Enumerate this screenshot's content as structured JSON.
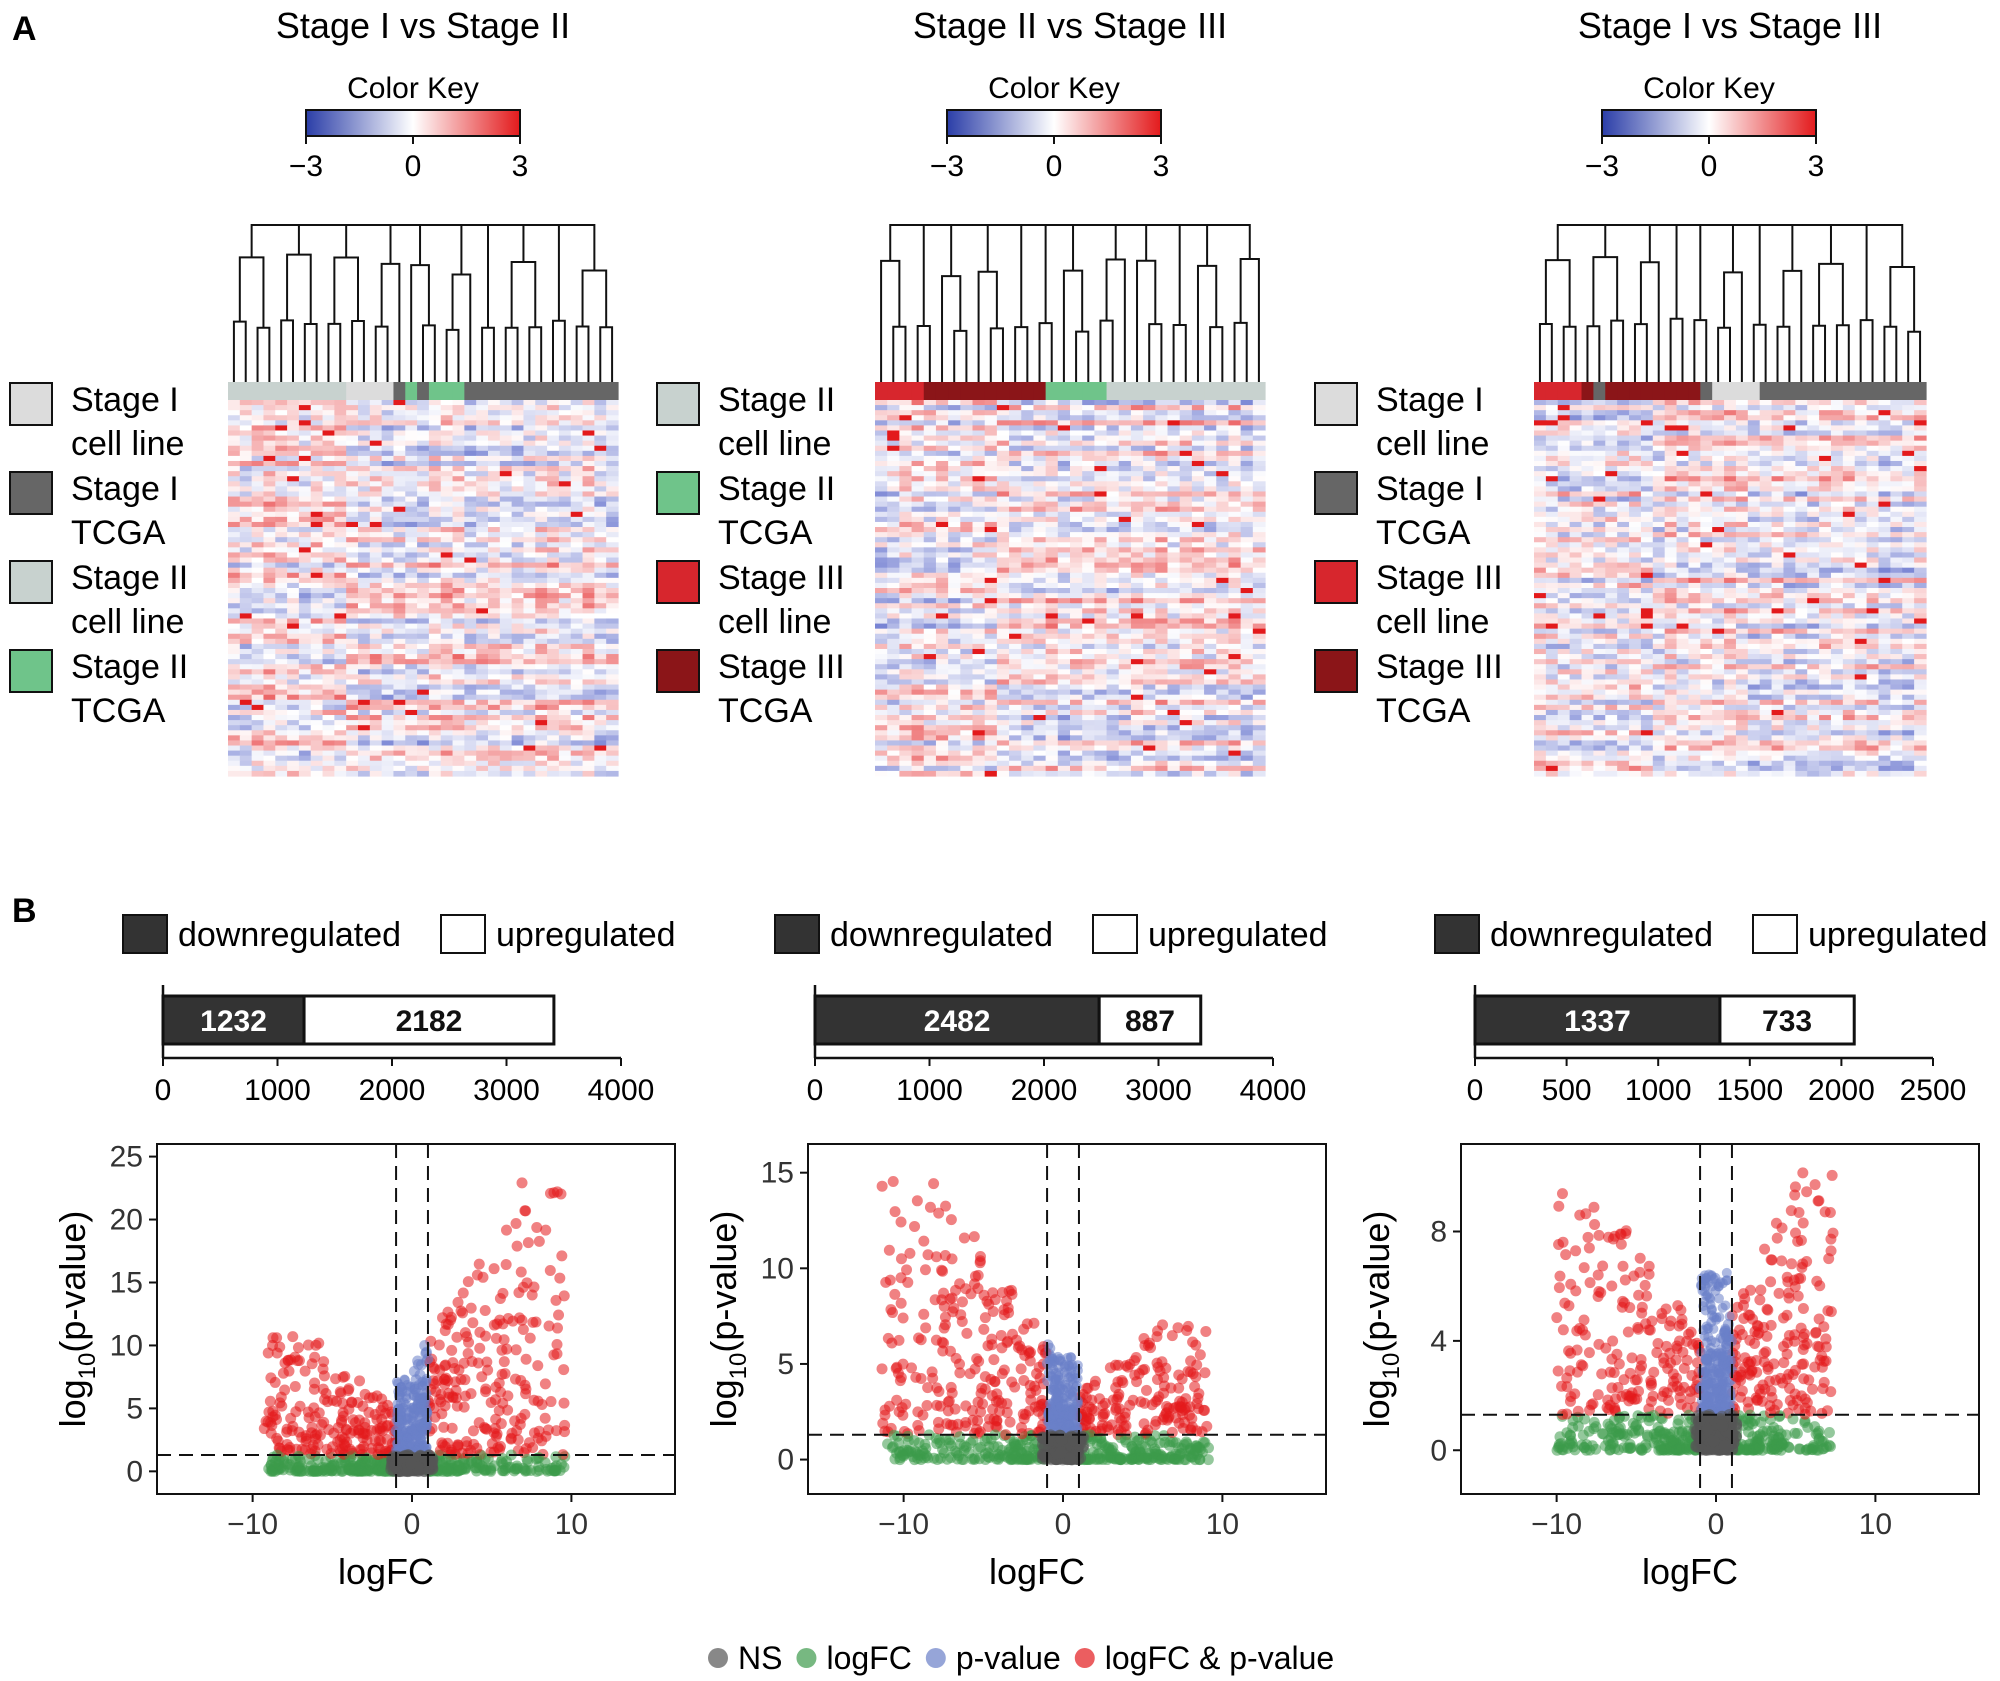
{
  "panel_letters": {
    "a": "A",
    "b": "B"
  },
  "colors": {
    "heat_low": "#3b4cc0",
    "heat_mid": "#ffffff",
    "heat_high": "#e31a1c",
    "stage1_cell": "#dcdcdc",
    "stage1_tcga": "#666666",
    "stage2_cell": "#c8d2cf",
    "stage2_tcga": "#6fc48a",
    "stage3_cell": "#d7262d",
    "stage3_tcga": "#8b1518",
    "ns": "#555555",
    "logfc": "#3d9a4b",
    "pvalue": "#6a7fc8",
    "both": "#e31a1c",
    "bar_down": "#333333",
    "bar_up": "#ffffff"
  },
  "heatmaps": [
    {
      "title": "Stage I vs Stage II",
      "color_key": {
        "label": "Color Key",
        "ticks": [
          "−3",
          "0",
          "3"
        ]
      },
      "legend": [
        {
          "line1": "Stage I",
          "line2": "cell line",
          "color": "#dcdcdc"
        },
        {
          "line1": "Stage I",
          "line2": "TCGA",
          "color": "#666666"
        },
        {
          "line1": "Stage II",
          "line2": "cell line",
          "color": "#c8d2cf"
        },
        {
          "line1": "Stage II",
          "line2": "TCGA",
          "color": "#6fc48a"
        }
      ],
      "col_groups": [
        "#c8d2cf",
        "#c8d2cf",
        "#c8d2cf",
        "#c8d2cf",
        "#c8d2cf",
        "#c8d2cf",
        "#c8d2cf",
        "#c8d2cf",
        "#c8d2cf",
        "#c8d2cf",
        "#dcdcdc",
        "#dcdcdc",
        "#dcdcdc",
        "#dcdcdc",
        "#666666",
        "#6fc48a",
        "#666666",
        "#6fc48a",
        "#6fc48a",
        "#6fc48a",
        "#666666",
        "#666666",
        "#666666",
        "#666666",
        "#666666",
        "#666666",
        "#666666",
        "#666666",
        "#666666",
        "#666666",
        "#666666",
        "#666666",
        "#666666"
      ]
    },
    {
      "title": "Stage II vs Stage III",
      "color_key": {
        "label": "Color Key",
        "ticks": [
          "−3",
          "0",
          "3"
        ]
      },
      "legend": [
        {
          "line1": "Stage II",
          "line2": "cell line",
          "color": "#c8d2cf"
        },
        {
          "line1": "Stage II",
          "line2": "TCGA",
          "color": "#6fc48a"
        },
        {
          "line1": "Stage III",
          "line2": "cell line",
          "color": "#d7262d"
        },
        {
          "line1": "Stage III",
          "line2": "TCGA",
          "color": "#8b1518"
        }
      ],
      "col_groups": [
        "#d7262d",
        "#d7262d",
        "#d7262d",
        "#d7262d",
        "#8b1518",
        "#8b1518",
        "#8b1518",
        "#8b1518",
        "#8b1518",
        "#8b1518",
        "#8b1518",
        "#8b1518",
        "#8b1518",
        "#8b1518",
        "#6fc48a",
        "#6fc48a",
        "#6fc48a",
        "#6fc48a",
        "#6fc48a",
        "#c8d2cf",
        "#c8d2cf",
        "#c8d2cf",
        "#c8d2cf",
        "#c8d2cf",
        "#c8d2cf",
        "#c8d2cf",
        "#c8d2cf",
        "#c8d2cf",
        "#c8d2cf",
        "#c8d2cf",
        "#c8d2cf",
        "#c8d2cf"
      ]
    },
    {
      "title": "Stage I vs Stage III",
      "color_key": {
        "label": "Color Key",
        "ticks": [
          "−3",
          "0",
          "3"
        ]
      },
      "legend": [
        {
          "line1": "Stage I",
          "line2": "cell line",
          "color": "#dcdcdc"
        },
        {
          "line1": "Stage I",
          "line2": "TCGA",
          "color": "#666666"
        },
        {
          "line1": "Stage III",
          "line2": "cell line",
          "color": "#d7262d"
        },
        {
          "line1": "Stage III",
          "line2": "TCGA",
          "color": "#8b1518"
        }
      ],
      "col_groups": [
        "#d7262d",
        "#d7262d",
        "#d7262d",
        "#d7262d",
        "#8b1518",
        "#666666",
        "#8b1518",
        "#8b1518",
        "#8b1518",
        "#8b1518",
        "#8b1518",
        "#8b1518",
        "#8b1518",
        "#8b1518",
        "#666666",
        "#dcdcdc",
        "#dcdcdc",
        "#dcdcdc",
        "#dcdcdc",
        "#666666",
        "#666666",
        "#666666",
        "#666666",
        "#666666",
        "#666666",
        "#666666",
        "#666666",
        "#666666",
        "#666666",
        "#666666",
        "#666666",
        "#666666",
        "#666666"
      ]
    }
  ],
  "bar_legend": {
    "down": "downregulated",
    "up": "upregulated"
  },
  "chart_data": [
    {
      "type": "bar",
      "orientation": "horizontal",
      "stacked": true,
      "series": [
        {
          "name": "downregulated",
          "values": [
            1232
          ]
        },
        {
          "name": "upregulated",
          "values": [
            2182
          ]
        }
      ],
      "xlim": [
        0,
        4000
      ],
      "xticks": [
        "0",
        "1000",
        "2000",
        "3000",
        "4000"
      ]
    },
    {
      "type": "bar",
      "orientation": "horizontal",
      "stacked": true,
      "series": [
        {
          "name": "downregulated",
          "values": [
            2482
          ]
        },
        {
          "name": "upregulated",
          "values": [
            887
          ]
        }
      ],
      "xlim": [
        0,
        4000
      ],
      "xticks": [
        "0",
        "1000",
        "2000",
        "3000",
        "4000"
      ]
    },
    {
      "type": "bar",
      "orientation": "horizontal",
      "stacked": true,
      "series": [
        {
          "name": "downregulated",
          "values": [
            1337
          ]
        },
        {
          "name": "upregulated",
          "values": [
            733
          ]
        }
      ],
      "xlim": [
        0,
        2500
      ],
      "xticks": [
        "0",
        "500",
        "1000",
        "1500",
        "2000",
        "2500"
      ]
    },
    {
      "type": "scatter",
      "xlabel": "logFC",
      "ylabel_base": "log",
      "ylabel_sub": "10",
      "ylabel_rest": "(p-value)",
      "xlim": [
        -16,
        16.5
      ],
      "ylim": [
        -1.8,
        26
      ],
      "xticks": [
        -10,
        0,
        10
      ],
      "yticks": [
        0,
        5,
        10,
        15,
        20,
        25
      ],
      "fc_threshold": 1,
      "p_threshold": 1.3,
      "extent": {
        "left_min_fc": -10,
        "right_max_fc": 10.5,
        "left_max_p": 11,
        "right_max_p": 23.5
      }
    },
    {
      "type": "scatter",
      "xlabel": "logFC",
      "ylabel_base": "log",
      "ylabel_sub": "10",
      "ylabel_rest": "(p-value)",
      "xlim": [
        -16,
        16.5
      ],
      "ylim": [
        -1.8,
        16.5
      ],
      "xticks": [
        -10,
        0,
        10
      ],
      "yticks": [
        0,
        5,
        10,
        15
      ],
      "fc_threshold": 1,
      "p_threshold": 1.3,
      "extent": {
        "left_min_fc": -12.5,
        "right_max_fc": 10,
        "left_max_p": 14.8,
        "right_max_p": 7.5
      }
    },
    {
      "type": "scatter",
      "xlabel": "logFC",
      "ylabel_base": "log",
      "ylabel_sub": "10",
      "ylabel_rest": "(p-value)",
      "xlim": [
        -16,
        16.5
      ],
      "ylim": [
        -1.6,
        11.2
      ],
      "xticks": [
        -10,
        0,
        10
      ],
      "yticks": [
        0,
        4,
        8
      ],
      "fc_threshold": 1,
      "p_threshold": 1.3,
      "extent": {
        "left_min_fc": -11,
        "right_max_fc": 8,
        "left_max_p": 9.5,
        "right_max_p": 10.3
      }
    }
  ],
  "scatter_legend": [
    {
      "label": "NS",
      "color": "#555555"
    },
    {
      "label": "logFC",
      "color": "#3d9a4b"
    },
    {
      "label": "p-value",
      "color": "#6a7fc8"
    },
    {
      "label": "logFC & p-value",
      "color": "#e31a1c"
    }
  ]
}
